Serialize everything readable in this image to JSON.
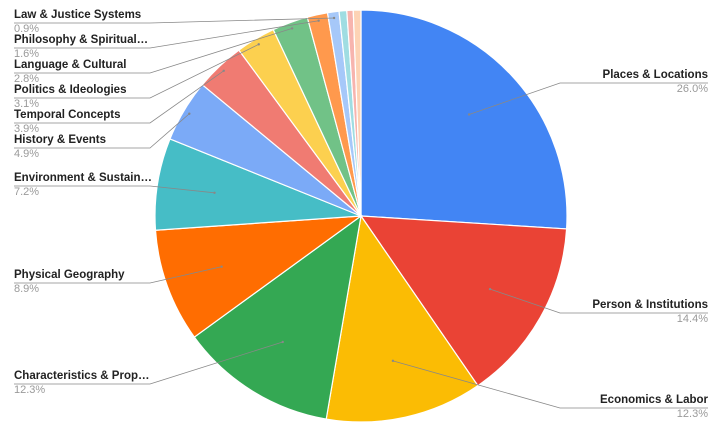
{
  "chart_data": {
    "type": "pie",
    "categories": [
      "Places & Locations",
      "Person & Institutions",
      "Economics & Labor",
      "Characteristics & Prop…",
      "Physical Geography",
      "Environment & Sustain…",
      "History & Events",
      "Temporal Concepts",
      "Politics & Ideologies",
      "Language & Cultural",
      "Philosophy & Spiritual…",
      "Law & Justice Systems",
      null,
      null,
      null
    ],
    "values": [
      26.0,
      14.4,
      12.3,
      12.3,
      8.9,
      7.2,
      4.9,
      3.9,
      3.1,
      2.8,
      1.6,
      0.9,
      0.6,
      0.5,
      0.6
    ],
    "value_labels": [
      "26.0%",
      "14.4%",
      "12.3%",
      "12.3%",
      "8.9%",
      "7.2%",
      "4.9%",
      "3.9%",
      "3.1%",
      "2.8%",
      "1.6%",
      "0.9%",
      null,
      null,
      null
    ],
    "colors": [
      "#4285f4",
      "#ea4335",
      "#fbbc04",
      "#34a853",
      "#ff6d01",
      "#46bdc6",
      "#7baaf7",
      "#f07b72",
      "#fcd04f",
      "#71c287",
      "#ff994d",
      "#a6c8f9",
      "#9fdde2",
      "#f7b4ae",
      "#fdd3b5"
    ]
  }
}
